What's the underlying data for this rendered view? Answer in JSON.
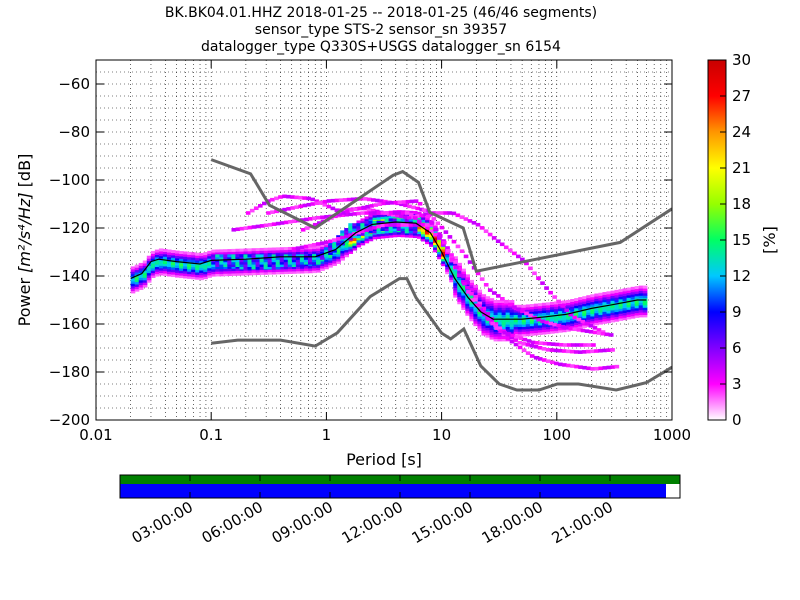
{
  "chart_data": {
    "type": "heatmap",
    "title_lines": [
      "BK.BK04.01.HHZ   2018-01-25 -- 2018-01-25  (46/46 segments)",
      "sensor_type STS-2 sensor_sn 39357",
      "datalogger_type Q330S+USGS datalogger_sn 6154"
    ],
    "xlabel": "Period [s]",
    "ylabel_prefix": "Power ",
    "ylabel_units": "[m²/s⁴/Hz]",
    "ylabel_suffix": " [dB]",
    "xscale": "log",
    "xlim": [
      0.01,
      1000
    ],
    "ylim": [
      -200,
      -50
    ],
    "xticks": [
      0.01,
      0.1,
      1,
      10,
      100,
      1000
    ],
    "xtick_labels": [
      "0.01",
      "0.1",
      "1",
      "10",
      "100",
      "1000"
    ],
    "yticks": [
      -60,
      -80,
      -100,
      -120,
      -140,
      -160,
      -180,
      -200
    ],
    "ytick_labels": [
      "−60",
      "−80",
      "−100",
      "−120",
      "−140",
      "−160",
      "−180",
      "−200"
    ],
    "grid": true,
    "colorbar": {
      "label": "[%]",
      "range": [
        0,
        30
      ],
      "ticks": [
        0,
        3,
        6,
        9,
        12,
        15,
        18,
        21,
        24,
        27,
        30
      ],
      "colormap": [
        "#ffffff",
        "#ff00ff",
        "#8000ff",
        "#0000ff",
        "#00c8ff",
        "#00ff64",
        "#96ff00",
        "#ffff00",
        "#ff9600",
        "#ff0000",
        "#c80000"
      ]
    },
    "noise_models": [
      {
        "name": "NHNM",
        "points": [
          [
            0.1,
            -91.5
          ],
          [
            0.22,
            -97.4
          ],
          [
            0.32,
            -110.5
          ],
          [
            0.8,
            -120
          ],
          [
            3.8,
            -98
          ],
          [
            4.6,
            -96.5
          ],
          [
            6.3,
            -101
          ],
          [
            7.9,
            -113.5
          ],
          [
            15.4,
            -120
          ],
          [
            20,
            -138
          ],
          [
            354.8,
            -126
          ],
          [
            1000,
            -112
          ]
        ]
      },
      {
        "name": "NLNM",
        "points": [
          [
            0.1,
            -168
          ],
          [
            0.17,
            -166.7
          ],
          [
            0.4,
            -166.7
          ],
          [
            0.8,
            -169.2
          ],
          [
            1.24,
            -163.7
          ],
          [
            2.4,
            -148.6
          ],
          [
            4.3,
            -141.1
          ],
          [
            5,
            -141.1
          ],
          [
            6,
            -149
          ],
          [
            10,
            -163.8
          ],
          [
            12,
            -166.2
          ],
          [
            15.6,
            -162.1
          ],
          [
            21.9,
            -177.5
          ],
          [
            31.6,
            -185
          ],
          [
            45,
            -187.5
          ],
          [
            70,
            -187.5
          ],
          [
            101,
            -185
          ],
          [
            154,
            -185
          ],
          [
            328,
            -187.5
          ],
          [
            600,
            -184.4
          ],
          [
            1000,
            -178
          ]
        ]
      }
    ],
    "mean_curve": [
      [
        0.02,
        -141
      ],
      [
        0.025,
        -139
      ],
      [
        0.03,
        -134
      ],
      [
        0.035,
        -133
      ],
      [
        0.05,
        -134
      ],
      [
        0.08,
        -135
      ],
      [
        0.1,
        -133.5
      ],
      [
        0.2,
        -133
      ],
      [
        0.4,
        -132
      ],
      [
        0.8,
        -132
      ],
      [
        1.2,
        -129
      ],
      [
        1.8,
        -122
      ],
      [
        2.5,
        -118.5
      ],
      [
        4,
        -117.5
      ],
      [
        6,
        -118
      ],
      [
        8,
        -122
      ],
      [
        10,
        -130
      ],
      [
        13,
        -141
      ],
      [
        17,
        -149
      ],
      [
        22,
        -155
      ],
      [
        28,
        -158
      ],
      [
        35,
        -158
      ],
      [
        50,
        -158
      ],
      [
        80,
        -157
      ],
      [
        120,
        -156
      ],
      [
        200,
        -153.5
      ],
      [
        300,
        -152
      ],
      [
        500,
        -150
      ],
      [
        600,
        -150
      ]
    ],
    "density_main": [
      [
        0.02,
        -141
      ],
      [
        0.025,
        -139
      ],
      [
        0.03,
        -134.5
      ],
      [
        0.035,
        -133.5
      ],
      [
        0.05,
        -134.5
      ],
      [
        0.08,
        -135.5
      ],
      [
        0.1,
        -134
      ],
      [
        0.2,
        -133.5
      ],
      [
        0.4,
        -133
      ],
      [
        0.8,
        -132.5
      ],
      [
        1.2,
        -129
      ],
      [
        1.8,
        -122
      ],
      [
        2.5,
        -118.5
      ],
      [
        4,
        -117.5
      ],
      [
        6,
        -118
      ],
      [
        8,
        -122
      ],
      [
        10,
        -130
      ],
      [
        13,
        -141
      ],
      [
        17,
        -149
      ],
      [
        22,
        -155.5
      ],
      [
        28,
        -158
      ],
      [
        35,
        -158
      ],
      [
        50,
        -158
      ],
      [
        80,
        -157
      ],
      [
        120,
        -156
      ],
      [
        200,
        -153.5
      ],
      [
        300,
        -152
      ],
      [
        500,
        -150
      ],
      [
        600,
        -150
      ]
    ],
    "density_wide_band": [
      [
        0.1,
        -135,
        -131
      ],
      [
        0.3,
        -136,
        -130
      ],
      [
        0.8,
        -134,
        -131
      ],
      [
        1.5,
        -124,
        -118
      ],
      [
        3,
        -120,
        -116
      ],
      [
        6,
        -121,
        -116
      ]
    ],
    "density_outliers": [
      [
        [
          0.2,
          -113
        ],
        [
          0.3,
          -108
        ],
        [
          0.4,
          -106
        ],
        [
          0.7,
          -107
        ],
        [
          1.2,
          -112
        ],
        [
          2,
          -111
        ],
        [
          3,
          -113
        ],
        [
          5,
          -115
        ],
        [
          8,
          -113
        ],
        [
          12,
          -113
        ],
        [
          20,
          -118
        ],
        [
          30,
          -125
        ],
        [
          50,
          -133
        ],
        [
          80,
          -145
        ],
        [
          130,
          -156
        ],
        [
          250,
          -163
        ]
      ],
      [
        [
          0.3,
          -113
        ],
        [
          0.6,
          -110
        ],
        [
          1,
          -108
        ],
        [
          2,
          -107
        ],
        [
          4,
          -109
        ],
        [
          7,
          -112
        ],
        [
          10,
          -120
        ],
        [
          15,
          -130
        ],
        [
          25,
          -145
        ],
        [
          40,
          -152
        ],
        [
          70,
          -158
        ],
        [
          120,
          -161
        ],
        [
          300,
          -164
        ]
      ],
      [
        [
          0.15,
          -120
        ],
        [
          0.3,
          -118
        ],
        [
          0.8,
          -115
        ],
        [
          2,
          -113
        ],
        [
          5,
          -113
        ],
        [
          10,
          -125
        ],
        [
          20,
          -150
        ],
        [
          35,
          -165
        ],
        [
          60,
          -173
        ],
        [
          100,
          -176
        ],
        [
          200,
          -178
        ],
        [
          320,
          -177
        ]
      ],
      [
        [
          0.5,
          -128
        ],
        [
          1,
          -125
        ],
        [
          3,
          -118
        ],
        [
          8,
          -118
        ],
        [
          14,
          -140
        ],
        [
          25,
          -158
        ],
        [
          45,
          -167
        ],
        [
          80,
          -170
        ],
        [
          150,
          -171
        ],
        [
          300,
          -170
        ]
      ],
      [
        [
          0.6,
          -120
        ],
        [
          1.5,
          -112
        ],
        [
          3,
          -109
        ],
        [
          6,
          -108
        ],
        [
          10,
          -125
        ],
        [
          18,
          -150
        ],
        [
          30,
          -162
        ],
        [
          60,
          -167
        ],
        [
          110,
          -168
        ],
        [
          200,
          -168
        ]
      ]
    ]
  },
  "timeline": {
    "tick_labels": [
      "03:00:00",
      "06:00:00",
      "09:00:00",
      "12:00:00",
      "15:00:00",
      "18:00:00",
      "21:00:00"
    ],
    "top_bar_color": "#008000",
    "bottom_bar_color": "#0000ff",
    "coverage_fraction_top": 1.0,
    "coverage_fraction_bottom": 0.975
  }
}
